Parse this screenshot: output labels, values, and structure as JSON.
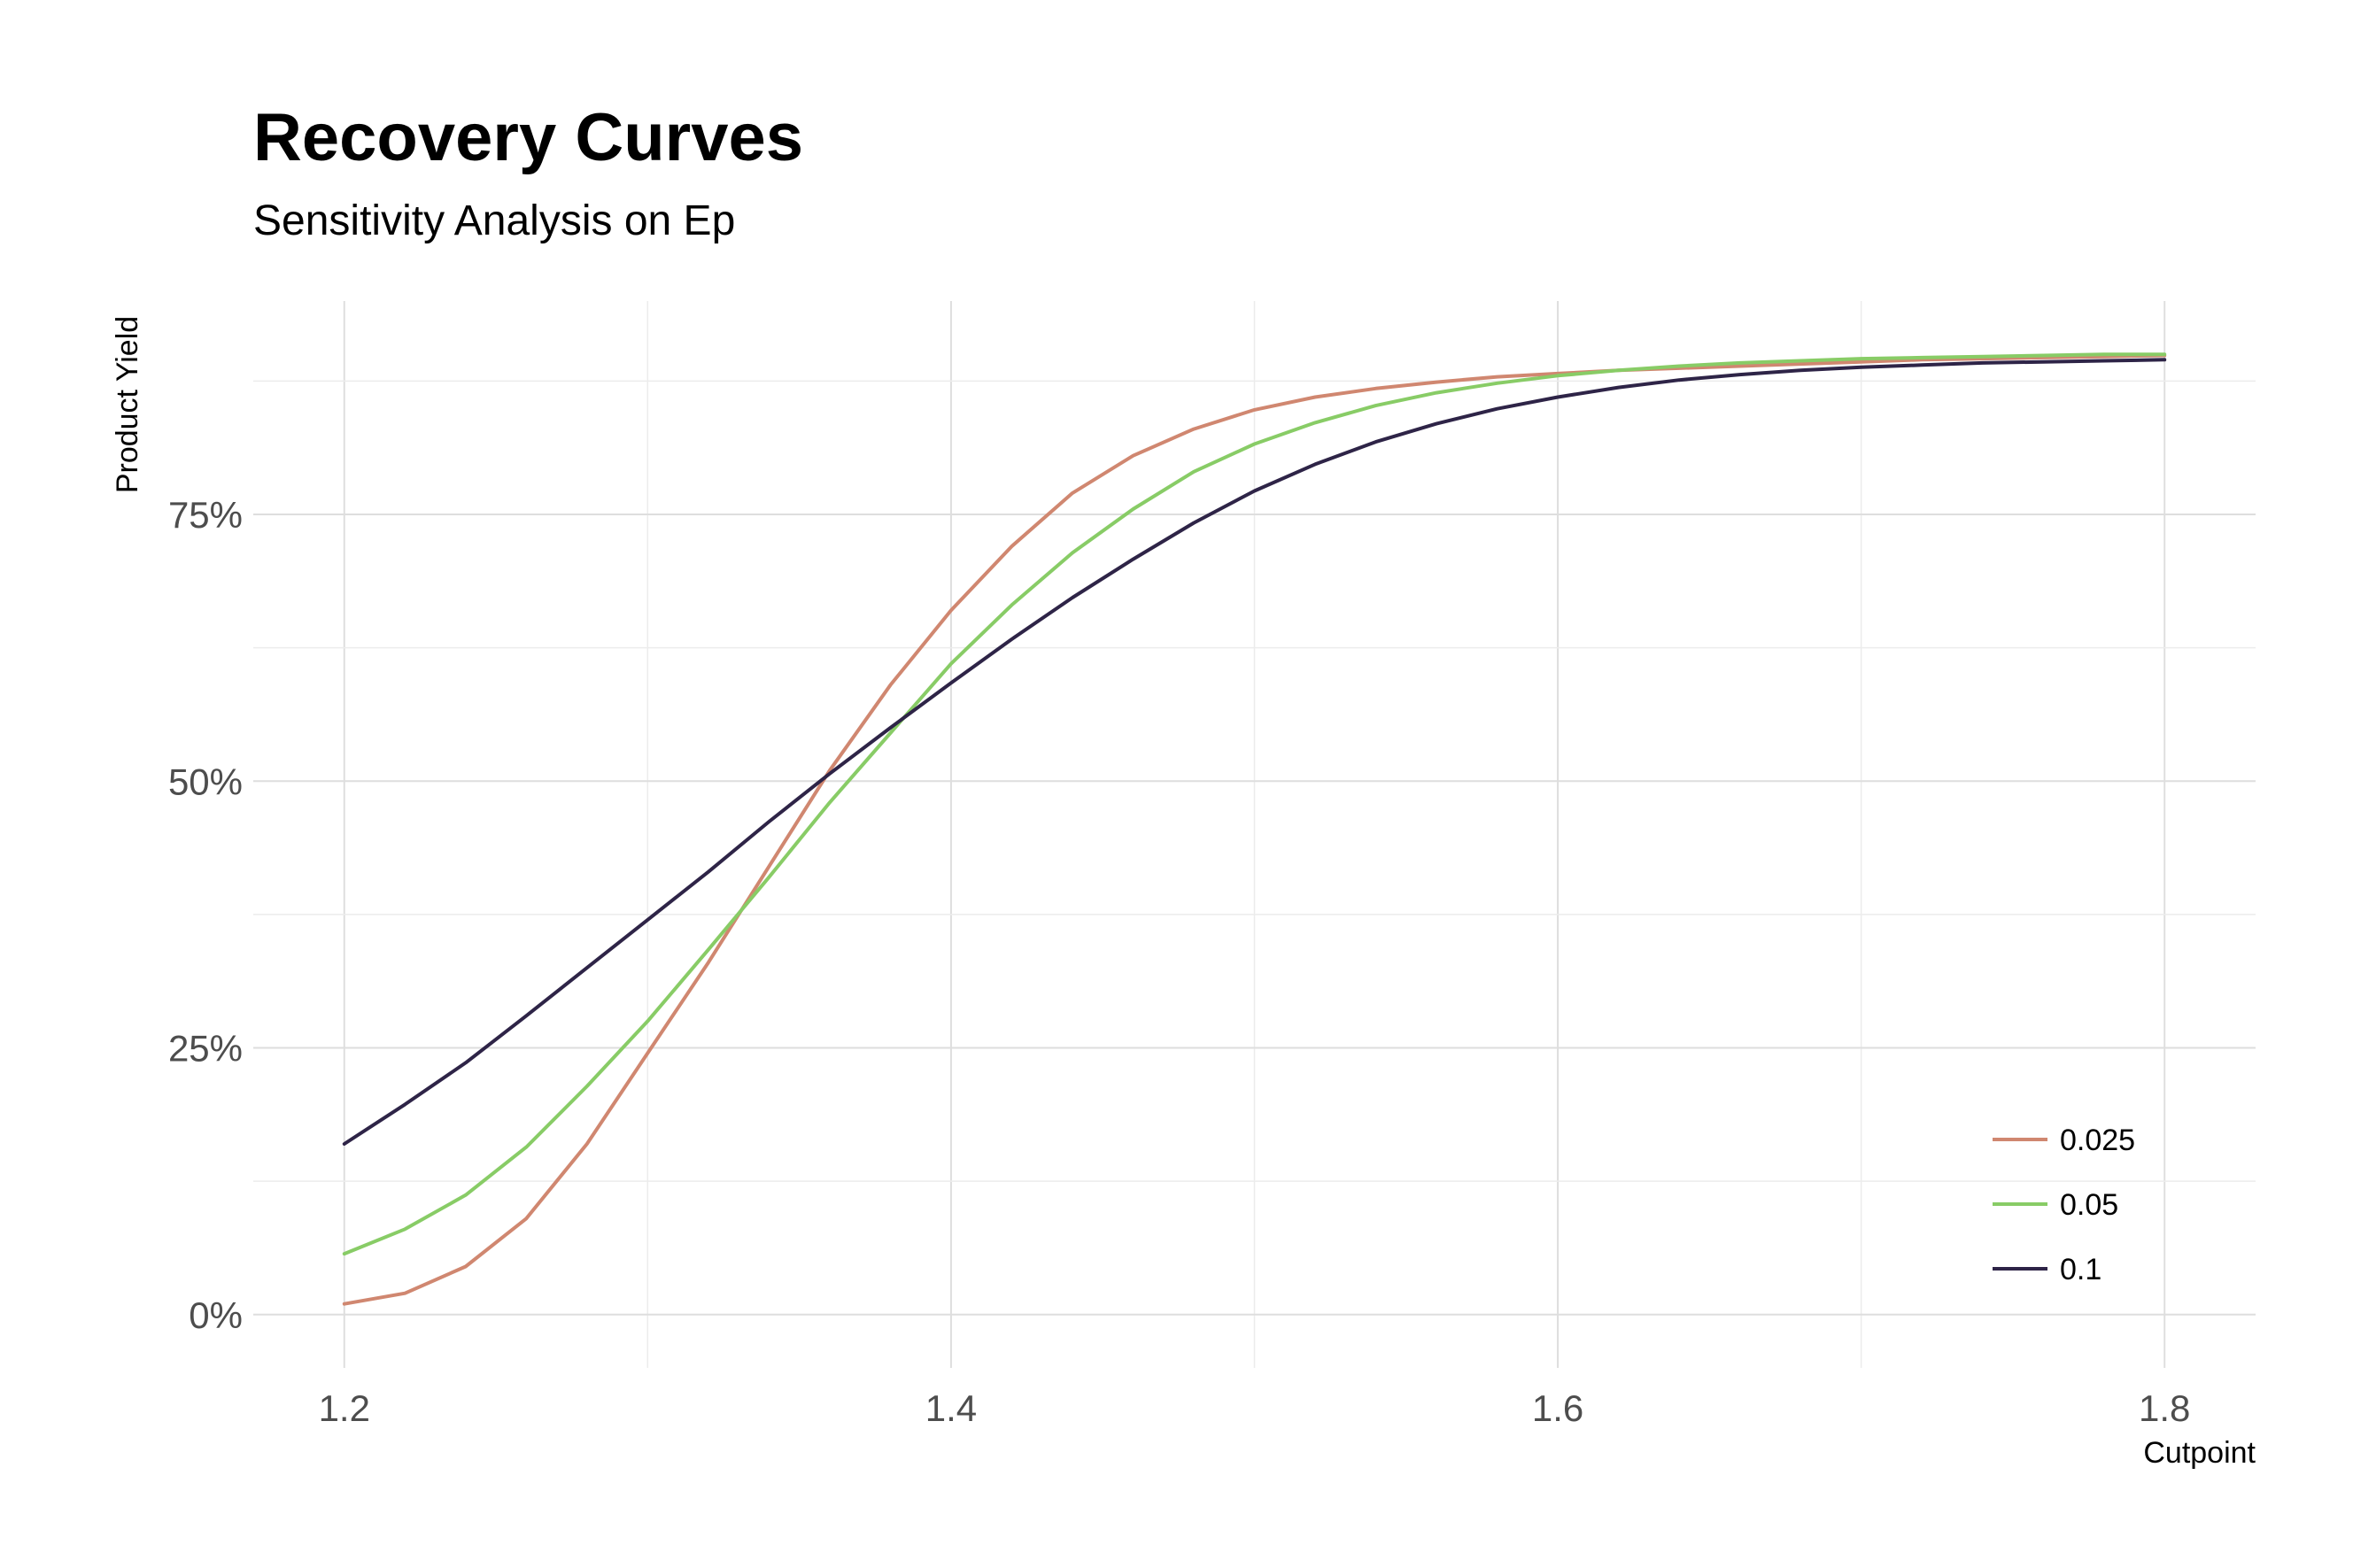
{
  "chart_data": {
    "type": "line",
    "title": "Recovery Curves",
    "subtitle": "Sensitivity Analysis on Ep",
    "xlabel": "Cutpoint",
    "ylabel": "Product Yield",
    "xlim": [
      1.17,
      1.83
    ],
    "ylim": [
      -0.05,
      0.95
    ],
    "x_ticks": [
      1.2,
      1.4,
      1.6,
      1.8
    ],
    "x_tick_labels": [
      "1.2",
      "1.4",
      "1.6",
      "1.8"
    ],
    "y_ticks": [
      0,
      0.25,
      0.5,
      0.75
    ],
    "y_tick_labels": [
      "0%",
      "25%",
      "50%",
      "75%"
    ],
    "grid": true,
    "legend_position": "bottom-right",
    "x": [
      1.2,
      1.22,
      1.24,
      1.26,
      1.28,
      1.3,
      1.32,
      1.34,
      1.36,
      1.38,
      1.4,
      1.42,
      1.44,
      1.46,
      1.48,
      1.5,
      1.52,
      1.54,
      1.56,
      1.58,
      1.6,
      1.62,
      1.64,
      1.66,
      1.68,
      1.7,
      1.72,
      1.74,
      1.76,
      1.78,
      1.8
    ],
    "series": [
      {
        "name": "0.025",
        "color": "#d08770",
        "values": [
          0.01,
          0.02,
          0.045,
          0.09,
          0.16,
          0.245,
          0.33,
          0.42,
          0.51,
          0.59,
          0.66,
          0.72,
          0.77,
          0.805,
          0.83,
          0.848,
          0.86,
          0.868,
          0.874,
          0.879,
          0.882,
          0.885,
          0.887,
          0.889,
          0.891,
          0.893,
          0.895,
          0.896,
          0.897,
          0.898,
          0.899
        ]
      },
      {
        "name": "0.05",
        "color": "#88cc66",
        "values": [
          0.057,
          0.08,
          0.112,
          0.157,
          0.214,
          0.275,
          0.342,
          0.41,
          0.48,
          0.545,
          0.61,
          0.665,
          0.714,
          0.755,
          0.79,
          0.816,
          0.836,
          0.852,
          0.864,
          0.873,
          0.88,
          0.885,
          0.889,
          0.892,
          0.894,
          0.896,
          0.897,
          0.898,
          0.899,
          0.9,
          0.9
        ]
      },
      {
        "name": "0.1",
        "color": "#2e2447",
        "values": [
          0.16,
          0.197,
          0.236,
          0.28,
          0.325,
          0.37,
          0.415,
          0.462,
          0.507,
          0.55,
          0.592,
          0.633,
          0.672,
          0.708,
          0.742,
          0.772,
          0.797,
          0.818,
          0.835,
          0.849,
          0.86,
          0.869,
          0.876,
          0.881,
          0.885,
          0.888,
          0.89,
          0.892,
          0.893,
          0.894,
          0.895
        ]
      }
    ]
  }
}
